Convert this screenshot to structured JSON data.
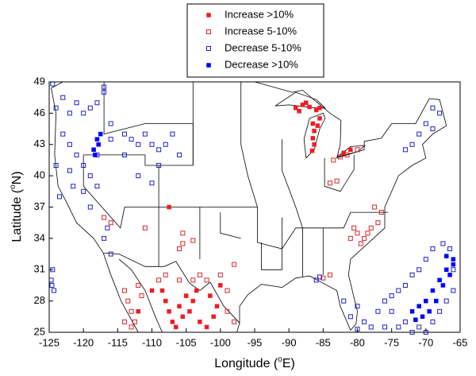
{
  "chart_data": {
    "type": "scatter",
    "xlabel": [
      "Longitude (",
      "o",
      "E)"
    ],
    "ylabel": [
      "Latitude (",
      "o",
      "N)"
    ],
    "xlim": [
      -125,
      -65
    ],
    "ylim": [
      25,
      49
    ],
    "xticks": [
      -125,
      -120,
      -115,
      -110,
      -105,
      -100,
      -95,
      -90,
      -85,
      -80,
      -75,
      -70,
      -65
    ],
    "yticks": [
      25,
      28,
      31,
      34,
      37,
      40,
      43,
      46,
      49
    ],
    "legend": "top",
    "series": [
      {
        "name": "Increase >10%",
        "color": "#ee1c24",
        "marker": "filled",
        "x": [
          -89,
          -88,
          -87,
          -86,
          -88.5,
          -87.5,
          -85.5,
          -86.5,
          -86.3,
          -86.5,
          -86.3,
          -86.6,
          -85.8,
          -85.5,
          -82,
          -81,
          -108,
          -107.5,
          -107,
          -106.5,
          -108.5,
          -106,
          -105,
          -104,
          -103,
          -102,
          -101,
          -100.5,
          -101.5,
          -100,
          -105.5,
          -104.5,
          -103.5,
          -110,
          -112,
          -107.5
        ],
        "y": [
          46.5,
          46.8,
          46.6,
          46.3,
          46.2,
          47,
          46.5,
          45,
          44.3,
          43.6,
          43,
          42.4,
          44.8,
          45.5,
          42.2,
          42.5,
          28,
          27,
          26,
          25.5,
          29,
          27.5,
          28.5,
          28,
          26,
          25.5,
          26.5,
          27.5,
          28.5,
          29.5,
          26.5,
          27,
          29,
          29,
          27,
          37
        ]
      },
      {
        "name": "Increase 5-10%",
        "color": "#d7262b",
        "marker": "hollow",
        "x": [
          -114,
          -113.5,
          -113,
          -112.5,
          -114,
          -113,
          -112,
          -111.5,
          -109,
          -108,
          -106,
          -104,
          -103,
          -102,
          -100,
          -99,
          -99,
          -98,
          -111,
          -106,
          -105.5,
          -105.5,
          -104,
          -98,
          -116,
          -117,
          -81,
          -80,
          -79,
          -78,
          -77,
          -80.5,
          -79.5,
          -78.5,
          -76.5,
          -77.5,
          -82.5,
          -81.5,
          -80,
          -83.5,
          -83,
          -84,
          -85,
          -84
        ],
        "y": [
          29,
          28,
          27,
          26,
          26,
          25.5,
          29.5,
          28.5,
          30,
          30.5,
          30,
          30,
          30.5,
          30,
          30.5,
          29,
          27,
          26,
          35,
          33,
          33.5,
          34.5,
          33.8,
          31.5,
          35.5,
          36,
          34,
          34.5,
          34,
          35,
          35.5,
          35,
          33.5,
          34.5,
          36.5,
          37,
          41.8,
          42,
          42.5,
          41.5,
          39.5,
          39.3,
          30.2,
          30.5
        ]
      },
      {
        "name": "Decrease 5-10%",
        "color": "#1f1fc8",
        "marker": "hollow",
        "x": [
          -123,
          -122,
          -121,
          -120,
          -119,
          -118,
          -117,
          -116,
          -123,
          -122,
          -121,
          -120,
          -119,
          -122,
          -121.5,
          -124,
          -114,
          -113,
          -112,
          -111,
          -110,
          -109,
          -108,
          -107,
          -106,
          -114,
          -116,
          -118,
          -124,
          -123.5,
          -120,
          -119,
          -118,
          -112,
          -110,
          -109,
          -117,
          -124.5,
          -116,
          -117,
          -116.5,
          -124.5,
          -124.7,
          -124.3,
          -124.6,
          -80,
          -81,
          -82,
          -79,
          -78,
          -80,
          -77,
          -76,
          -75,
          -74,
          -73,
          -72,
          -71,
          -70,
          -69,
          -68,
          -67,
          -66,
          -66,
          -66.5,
          -67.5,
          -69,
          -70,
          -71,
          -72,
          -73,
          -74,
          -75,
          -76,
          -70,
          -69,
          -71,
          -68,
          -69,
          -72,
          -73,
          -86,
          -85.5
        ],
        "y": [
          47.5,
          46,
          47,
          46,
          46.5,
          47,
          48,
          45,
          44,
          43,
          42,
          41,
          40,
          40.5,
          39,
          46.5,
          44,
          43.5,
          43,
          44,
          43,
          42.5,
          43,
          44,
          42,
          42,
          43.5,
          42,
          41,
          38,
          38.5,
          37,
          39,
          40,
          39.3,
          41,
          48.5,
          48.8,
          32.5,
          34,
          35,
          31,
          30,
          29,
          29.5,
          27.5,
          26.5,
          28,
          26,
          25.5,
          25.3,
          27,
          25.5,
          27,
          25.5,
          26,
          25,
          25.5,
          25,
          26,
          27,
          28,
          29,
          31,
          33,
          33.5,
          33,
          32,
          31,
          30.5,
          29.5,
          29,
          28.5,
          28,
          45,
          44.5,
          44,
          46,
          46.5,
          43,
          42.5,
          30,
          30.3
        ]
      },
      {
        "name": "Decrease >10%",
        "color": "#0000ff",
        "marker": "filled",
        "x": [
          -118,
          -117.5,
          -118.5,
          -118.3,
          -117.8,
          -72,
          -71,
          -70,
          -69,
          -68,
          -67,
          -66,
          -66.5,
          -67.5,
          -68.5,
          -69.5,
          -70.5,
          -71.5,
          -67,
          -66
        ],
        "y": [
          43.5,
          44,
          42.5,
          42,
          43,
          27,
          27.5,
          28,
          29,
          30,
          31,
          32,
          30.5,
          29.5,
          28,
          27,
          26.5,
          26.2,
          32.3,
          31.5
        ]
      }
    ]
  }
}
